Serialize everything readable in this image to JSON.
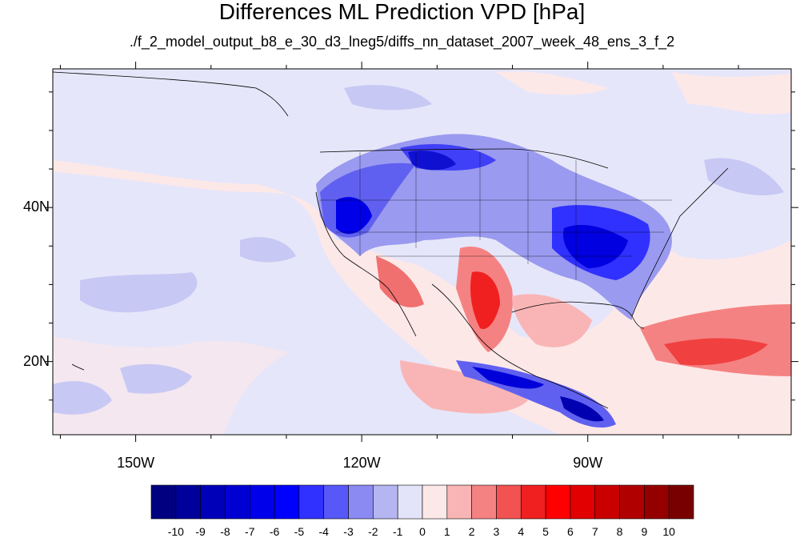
{
  "title": "Differences ML Prediction VPD [hPa]",
  "subtitle": "./f_2_model_output_b8_e_30_d3_lneg5/diffs_nn_dataset_2007_week_48_ens_3_f_2",
  "map": {
    "lon_range": [
      -161,
      -63
    ],
    "lat_range": [
      10.5,
      58
    ],
    "x_ticks": [
      {
        "label": "150W",
        "lon": -150
      },
      {
        "label": "120W",
        "lon": -120
      },
      {
        "label": "90W",
        "lon": -90
      }
    ],
    "y_ticks": [
      {
        "label": "40N",
        "lat": 40
      },
      {
        "label": "20N",
        "lat": 20
      }
    ]
  },
  "colorbar": {
    "labels": [
      "-10",
      "-9",
      "-8",
      "-7",
      "-6",
      "-5",
      "-4",
      "-3",
      "-2",
      "-1",
      "0",
      "1",
      "2",
      "3",
      "4",
      "5",
      "6",
      "7",
      "8",
      "9",
      "10"
    ],
    "colors": [
      "#000080",
      "#00009a",
      "#0000b8",
      "#0000d2",
      "#0000ea",
      "#0000ff",
      "#3030ff",
      "#5858f8",
      "#8a8af2",
      "#b5b5f2",
      "#e3e3fa",
      "#fde8e8",
      "#f9b5b5",
      "#f58282",
      "#f25252",
      "#f02020",
      "#ff0000",
      "#e20000",
      "#c80000",
      "#b00000",
      "#940000",
      "#780000"
    ]
  }
}
